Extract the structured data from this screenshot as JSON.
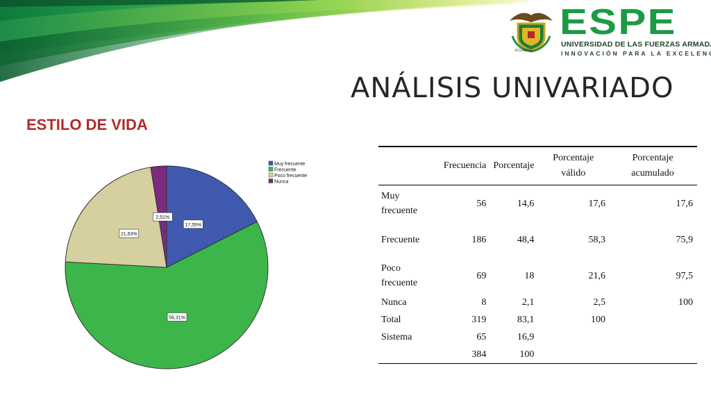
{
  "slide": {
    "title": "ANÁLISIS UNIVARIADO",
    "section": "ESTILO DE VIDA"
  },
  "logo": {
    "wordmark": "ESPE",
    "line1": "UNIVERSIDAD DE LAS FUERZAS ARMADAS",
    "line2": "INNOVACIÓN PARA LA EXCELENCIA",
    "emblem_text": "ECUADOR",
    "color": "#1d9a46"
  },
  "chart_data": {
    "type": "pie",
    "slices": [
      {
        "name": "Muy frecuente",
        "value": 17.55,
        "label": "17,55%",
        "color": "#3f5aae"
      },
      {
        "name": "Frecuente",
        "value": 58.31,
        "label": "58,31%",
        "color": "#3cb64b"
      },
      {
        "name": "Poco frecuente",
        "value": 21.63,
        "label": "21,63%",
        "color": "#d6cf9f"
      },
      {
        "name": "Nunca",
        "value": 2.51,
        "label": "2,51%",
        "color": "#7b2b7f"
      }
    ],
    "legend_placement": "top-right"
  },
  "table": {
    "headers": [
      "",
      "Frecuencia",
      "Porcentaje",
      "Porcentaje válido",
      "Porcentaje acumulado"
    ],
    "rows": [
      [
        "Muy frecuente",
        "56",
        "14,6",
        "17,6",
        "17,6"
      ],
      [
        "Frecuente",
        "186",
        "48,4",
        "58,3",
        "75,9"
      ],
      [
        "Poco frecuente",
        "69",
        "18",
        "21,6",
        "97,5"
      ],
      [
        "Nunca",
        "8",
        "2,1",
        "2,5",
        "100"
      ],
      [
        "Total",
        "319",
        "83,1",
        "100",
        ""
      ],
      [
        "Sistema",
        "65",
        "16,9",
        "",
        ""
      ],
      [
        "",
        "384",
        "100",
        "",
        ""
      ]
    ]
  }
}
